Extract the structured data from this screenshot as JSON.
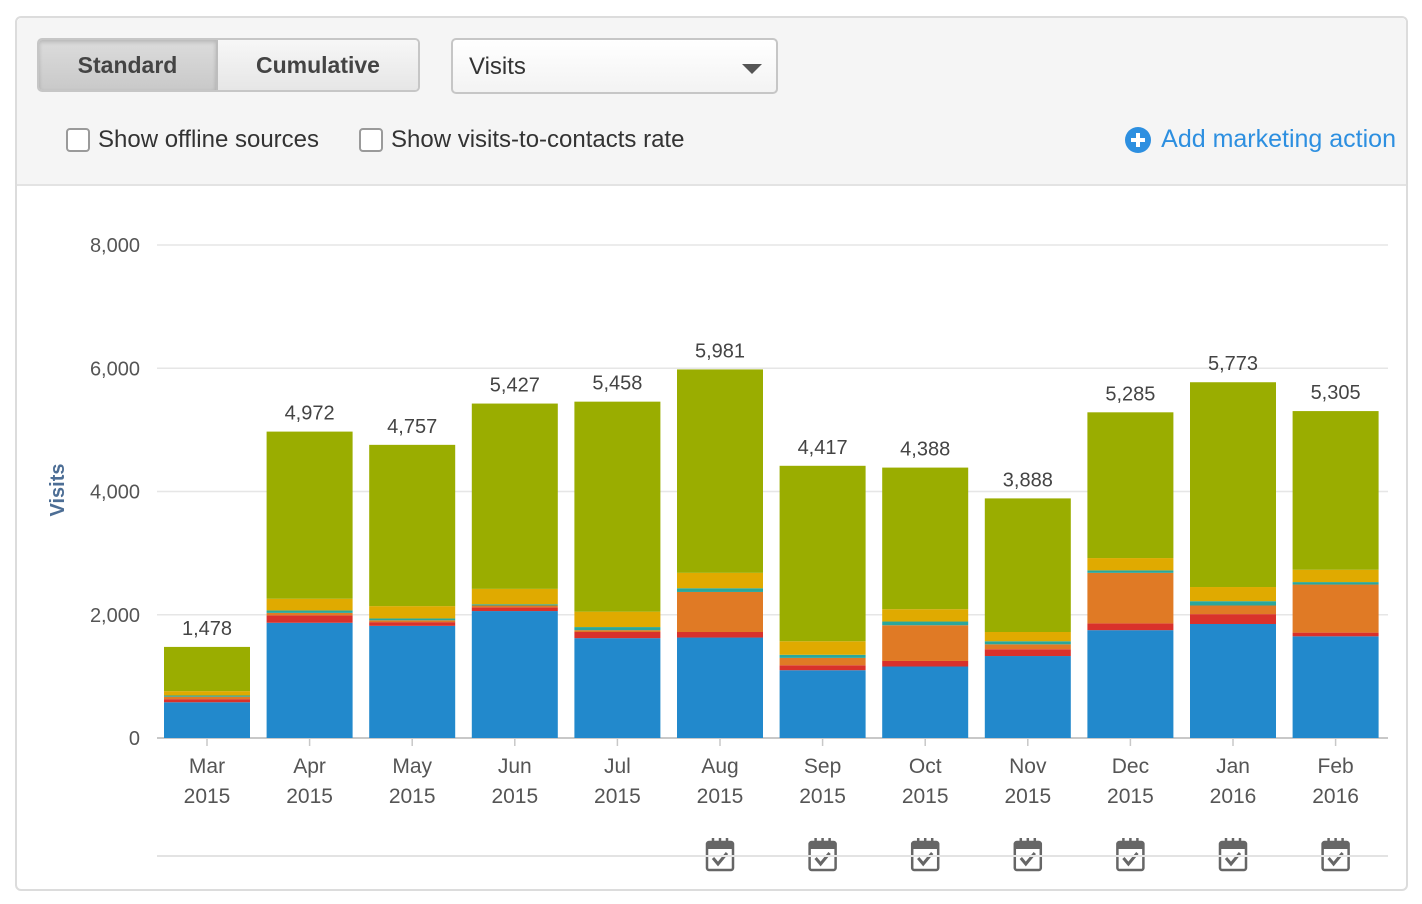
{
  "controls": {
    "standard_label": "Standard",
    "cumulative_label": "Cumulative",
    "metric_selected": "Visits",
    "show_offline_label": "Show offline sources",
    "show_rate_label": "Show visits-to-contacts rate",
    "add_action_label": "Add marketing action"
  },
  "colors": {
    "accent": "#2d8fe0",
    "series": [
      "#2289cc",
      "#d9312b",
      "#e07a25",
      "#2aa79b",
      "#e0aa00",
      "#9aad00"
    ]
  },
  "chart_data": {
    "type": "bar",
    "stacked": true,
    "ylabel": "Visits",
    "ylim": [
      0,
      8000
    ],
    "yticks": [
      "0",
      "2,000",
      "4,000",
      "6,000",
      "8,000"
    ],
    "categories": [
      [
        "Mar",
        "2015"
      ],
      [
        "Apr",
        "2015"
      ],
      [
        "May",
        "2015"
      ],
      [
        "Jun",
        "2015"
      ],
      [
        "Jul",
        "2015"
      ],
      [
        "Aug",
        "2015"
      ],
      [
        "Sep",
        "2015"
      ],
      [
        "Oct",
        "2015"
      ],
      [
        "Nov",
        "2015"
      ],
      [
        "Dec",
        "2015"
      ],
      [
        "Jan",
        "2016"
      ],
      [
        "Feb",
        "2016"
      ]
    ],
    "totals": [
      1478,
      4972,
      4757,
      5427,
      5458,
      5981,
      4417,
      4388,
      3888,
      5285,
      5773,
      5305
    ],
    "total_labels": [
      "1,478",
      "4,972",
      "4,757",
      "5,427",
      "5,458",
      "5,981",
      "4,417",
      "4,388",
      "3,888",
      "5,285",
      "5,773",
      "5,305"
    ],
    "series": [
      {
        "name": "series-blue",
        "values": [
          580,
          1870,
          1820,
          2060,
          1620,
          1630,
          1100,
          1160,
          1330,
          1750,
          1850,
          1650
        ]
      },
      {
        "name": "series-red",
        "values": [
          50,
          120,
          60,
          60,
          100,
          90,
          80,
          90,
          110,
          110,
          160,
          60
        ]
      },
      {
        "name": "series-orange",
        "values": [
          40,
          40,
          30,
          30,
          30,
          650,
          120,
          580,
          80,
          820,
          140,
          780
        ]
      },
      {
        "name": "series-teal",
        "values": [
          20,
          40,
          30,
          20,
          50,
          60,
          50,
          60,
          50,
          40,
          70,
          40
        ]
      },
      {
        "name": "series-yellow",
        "values": [
          70,
          190,
          200,
          250,
          250,
          250,
          220,
          200,
          150,
          200,
          230,
          200
        ]
      },
      {
        "name": "series-green",
        "values": [
          718,
          2712,
          2617,
          3007,
          3408,
          3301,
          2847,
          2298,
          2168,
          2365,
          3323,
          2575
        ]
      }
    ],
    "marketing_action_months": [
      "Aug",
      "Sep",
      "Oct",
      "Nov",
      "Dec",
      "Jan",
      "Feb"
    ]
  }
}
